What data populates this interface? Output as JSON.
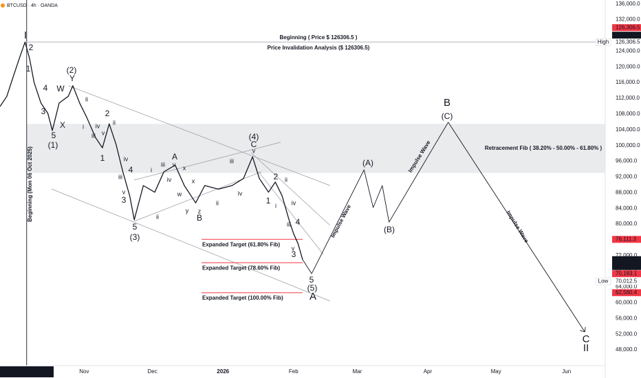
{
  "header": {
    "symbol": "BTCUSD · 4h · OANDA"
  },
  "chart_data": {
    "type": "line",
    "series": [
      {
        "color": "#131722",
        "x": [
          "2025-09-25",
          "2025-09-28",
          "2025-10-01",
          "2025-10-04",
          "2025-10-06",
          "2025-10-08",
          "2025-10-10",
          "2025-10-13",
          "2025-10-16",
          "2025-10-18",
          "2025-10-21",
          "2025-10-25",
          "2025-10-27",
          "2025-10-30",
          "2025-11-02",
          "2025-11-06",
          "2025-11-09",
          "2025-11-12",
          "2025-11-15",
          "2025-11-18",
          "2025-11-21",
          "2025-11-23",
          "2025-11-27",
          "2025-12-02",
          "2025-12-06",
          "2025-12-11",
          "2025-12-15",
          "2025-12-20",
          "2025-12-24",
          "2025-12-30",
          "2026-01-05",
          "2026-01-10",
          "2026-01-14",
          "2026-01-17",
          "2026-01-21",
          "2026-01-24",
          "2026-01-27",
          "2026-01-30",
          "2026-02-01",
          "2026-02-03",
          "2026-02-05"
        ],
        "values": [
          109900,
          112500,
          117800,
          123000,
          126306.5,
          122100,
          116000,
          110800,
          108200,
          103800,
          110800,
          112500,
          115200,
          110800,
          107300,
          102000,
          99400,
          105500,
          100300,
          93300,
          87200,
          81100,
          89800,
          88100,
          93300,
          95000,
          89800,
          85400,
          89800,
          88900,
          89800,
          91600,
          97100,
          91600,
          88100,
          90700,
          87200,
          81100,
          77600,
          75000,
          70963.5
        ]
      },
      {
        "color": "#131722",
        "x": [
          "2026-02-05",
          "2026-02-09",
          "2026-03-04",
          "2026-03-08",
          "2026-03-12",
          "2026-03-15",
          "2026-04-10",
          "2026-06-09"
        ],
        "values": [
          70963.5,
          67400,
          93800,
          84200,
          89800,
          80500,
          105900,
          52600
        ]
      }
    ],
    "xlim": [
      "2025-09-25",
      "2026-06-18"
    ],
    "xticks": [
      {
        "value": "2025-11-01",
        "label": "Nov"
      },
      {
        "value": "2025-12-01",
        "label": "Dec"
      },
      {
        "value": "2026-01-01",
        "label": "2026"
      },
      {
        "value": "2026-02-01",
        "label": "Feb"
      },
      {
        "value": "2026-03-01",
        "label": "Mar"
      },
      {
        "value": "2026-04-01",
        "label": "Apr"
      },
      {
        "value": "2026-05-01",
        "label": "May"
      },
      {
        "value": "2026-06-01",
        "label": "Jun"
      }
    ],
    "ylim": [
      44000,
      137000
    ],
    "yticks": [
      {
        "value": 48000,
        "label": "48,000.0"
      },
      {
        "value": 52000,
        "label": "52,000.0"
      },
      {
        "value": 56000,
        "label": "56,000.0"
      },
      {
        "value": 60000,
        "label": "60,000.0"
      },
      {
        "value": 64000,
        "label": "64,000.0"
      },
      {
        "value": 68000,
        "label": "68,000.0"
      },
      {
        "value": 72000,
        "label": "72,000.0"
      },
      {
        "value": 76000,
        "label": "76,000.0"
      },
      {
        "value": 80000,
        "label": "80,000.0"
      },
      {
        "value": 84000,
        "label": "84,000.0"
      },
      {
        "value": 88000,
        "label": "88,000.0"
      },
      {
        "value": 92000,
        "label": "92,000.0"
      },
      {
        "value": 96000,
        "label": "96,000.0"
      },
      {
        "value": 100000,
        "label": "100,000.0"
      },
      {
        "value": 104000,
        "label": "104,000.0"
      },
      {
        "value": 108000,
        "label": "108,000.0"
      },
      {
        "value": 112000,
        "label": "112,000.0"
      },
      {
        "value": 116000,
        "label": "116,000.0"
      },
      {
        "value": 120000,
        "label": "120,000.0"
      },
      {
        "value": 124000,
        "label": "124,000.0"
      },
      {
        "value": 128000,
        "label": "128,000.0"
      },
      {
        "value": 132000,
        "label": "132,000.0"
      },
      {
        "value": 136000,
        "label": "136,000.0"
      }
    ],
    "grid": false,
    "cursor": {
      "x": "2025-10-06T17:00",
      "label": "Mon 06 Oct '25 17:00"
    },
    "high_line": 126306.5,
    "price_labels": [
      {
        "value": 126306.5,
        "label": "126,306.5",
        "color": "#f23645"
      },
      {
        "value": 126306.5,
        "label": "126,306.5",
        "color": "#131722"
      },
      {
        "value": 126306.5,
        "label": "126,306.5",
        "tag": "High"
      },
      {
        "value": 76111.3,
        "label": "76,111.3",
        "color": "#f23645"
      },
      {
        "value": 70963.5,
        "label": "70,963.5",
        "color": "#131722",
        "countdown": "59:37"
      },
      {
        "value": 70183.1,
        "label": "70,183.1",
        "color": "#f23645"
      },
      {
        "value": 70012.5,
        "label": "70,012.5",
        "tag": "Low"
      },
      {
        "value": 62560.4,
        "label": "62,560.4",
        "color": "#f23645"
      }
    ],
    "targets": [
      {
        "value": 76111.3,
        "label": "Expanded Target (61.80% Fib)"
      },
      {
        "value": 70183.1,
        "label": "Expanded Target (78.60% Fib)"
      },
      {
        "value": 62560.4,
        "label": "Expanded Target (100.00% Fib)"
      }
    ],
    "target_color": "#f23645",
    "zone": {
      "range": [
        93000,
        105500
      ],
      "label": "Retracement Fib ( 38.20% - 50.00% - 61.80% )"
    },
    "notes": [
      "Beginning ( Price $ 126306.5 )",
      "Price Invalidation Analysis ($ 126306.5)",
      "Beginning (Mon 06 Oct 2025)"
    ],
    "impulse_labels": [
      "Impulse Wave",
      "Impulse Wave",
      "Impulse Wave"
    ],
    "wave_labels": [
      {
        "text": "I",
        "color": "#f23645"
      },
      {
        "text": "2",
        "color": "#131722"
      },
      {
        "text": "1",
        "color": "#131722"
      },
      {
        "text": "4",
        "color": "#131722"
      },
      {
        "text": "W",
        "color": "#131722"
      },
      {
        "text": "Y",
        "color": "#131722"
      },
      {
        "text": "3",
        "color": "#131722"
      },
      {
        "text": "X",
        "color": "#131722"
      },
      {
        "text": "5",
        "color": "#131722"
      },
      {
        "text": "(1)",
        "color": "#9c5f66"
      },
      {
        "text": "(2)",
        "color": "#9c5f66"
      },
      {
        "text": "ii",
        "color": "#f23645"
      },
      {
        "text": "i",
        "color": "#f23645"
      },
      {
        "text": "iv",
        "color": "#f23645"
      },
      {
        "text": "iii",
        "color": "#f23645"
      },
      {
        "text": "v",
        "color": "#f23645"
      },
      {
        "text": "ii",
        "color": "#f23645"
      },
      {
        "text": "2",
        "color": "#131722"
      },
      {
        "text": "1",
        "color": "#131722"
      },
      {
        "text": "iv",
        "color": "#f23645"
      },
      {
        "text": "iii",
        "color": "#f23645"
      },
      {
        "text": "4",
        "color": "#131722"
      },
      {
        "text": "v",
        "color": "#f23645"
      },
      {
        "text": "3",
        "color": "#131722"
      },
      {
        "text": "5",
        "color": "#131722"
      },
      {
        "text": "(3)",
        "color": "#9c5f66"
      },
      {
        "text": "i",
        "color": "#f23645"
      },
      {
        "text": "iii",
        "color": "#f23645"
      },
      {
        "text": "v",
        "color": "#f23645"
      },
      {
        "text": "A",
        "color": "#131722"
      },
      {
        "text": "ii",
        "color": "#f23645"
      },
      {
        "text": "iv",
        "color": "#f23645"
      },
      {
        "text": "w",
        "color": "#f23645"
      },
      {
        "text": "x",
        "color": "#f23645"
      },
      {
        "text": "x",
        "color": "#f23645"
      },
      {
        "text": "y",
        "color": "#f23645"
      },
      {
        "text": "z",
        "color": "#f23645"
      },
      {
        "text": "B",
        "color": "#131722"
      },
      {
        "text": "ii",
        "color": "#f23645"
      },
      {
        "text": "iii",
        "color": "#f23645"
      },
      {
        "text": "iv",
        "color": "#f23645"
      },
      {
        "text": "(4)",
        "color": "#9c5f66"
      },
      {
        "text": "C",
        "color": "#131722"
      },
      {
        "text": "v",
        "color": "#f23645"
      },
      {
        "text": "2",
        "color": "#131722"
      },
      {
        "text": "ii",
        "color": "#f23645"
      },
      {
        "text": "1",
        "color": "#131722"
      },
      {
        "text": "i",
        "color": "#f23645"
      },
      {
        "text": "iv",
        "color": "#f23645"
      },
      {
        "text": "iii",
        "color": "#f23645"
      },
      {
        "text": "4",
        "color": "#131722"
      },
      {
        "text": "v",
        "color": "#f23645"
      },
      {
        "text": "3",
        "color": "#131722"
      },
      {
        "text": "5",
        "color": "#131722"
      },
      {
        "text": "(5)",
        "color": "#9c5f66"
      },
      {
        "text": "A",
        "color": "#6a6d78"
      },
      {
        "text": "(A)",
        "color": "#9c5f66"
      },
      {
        "text": "(B)",
        "color": "#9c5f66"
      },
      {
        "text": "B",
        "color": "#6a6d78"
      },
      {
        "text": "(C)",
        "color": "#9c5f66"
      },
      {
        "text": "C",
        "color": "#6a6d78"
      },
      {
        "text": "II",
        "color": "#f23645"
      }
    ]
  }
}
